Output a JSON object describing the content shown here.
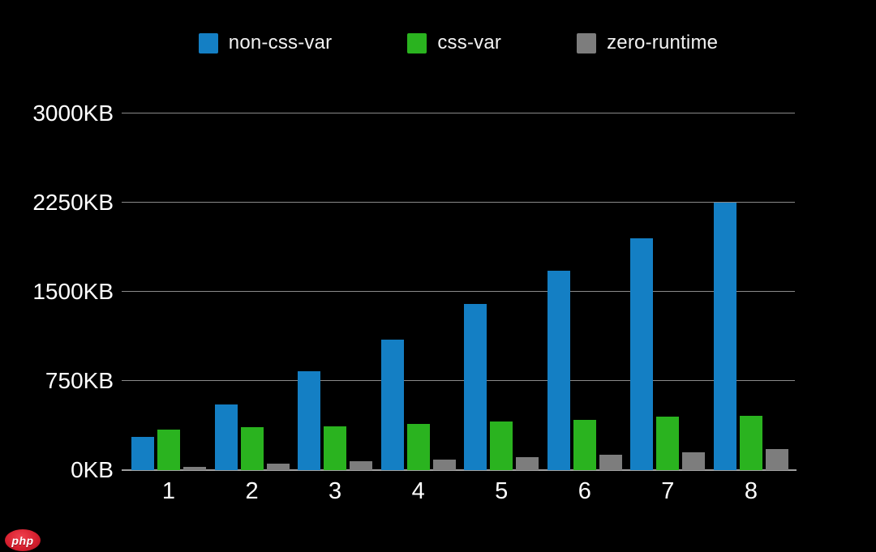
{
  "page": {
    "background": "#000000",
    "text_color": "#ffffff",
    "gridline_color": "#8a8a8a"
  },
  "legend": {
    "items": [
      {
        "label": "non-css-var",
        "color": "#147fc4"
      },
      {
        "label": "css-var",
        "color": "#2ab31f"
      },
      {
        "label": "zero-runtime",
        "color": "#7d7d7d"
      }
    ]
  },
  "chart_data": {
    "type": "bar",
    "title": "",
    "xlabel": "",
    "ylabel": "",
    "unit": "KB",
    "categories": [
      "1",
      "2",
      "3",
      "4",
      "5",
      "6",
      "7",
      "8"
    ],
    "series": [
      {
        "name": "non-css-var",
        "color": "#147fc4",
        "values": [
          280,
          550,
          830,
          1100,
          1400,
          1680,
          1950,
          2250
        ]
      },
      {
        "name": "css-var",
        "color": "#2ab31f",
        "values": [
          340,
          360,
          370,
          390,
          410,
          420,
          450,
          460
        ]
      },
      {
        "name": "zero-runtime",
        "color": "#7d7d7d",
        "values": [
          30,
          55,
          75,
          90,
          110,
          130,
          150,
          180
        ]
      }
    ],
    "ylim": [
      0,
      3000
    ],
    "yticks": [
      {
        "value": 3000,
        "label": "3000KB"
      },
      {
        "value": 2250,
        "label": "2250KB"
      },
      {
        "value": 1500,
        "label": "1500KB"
      },
      {
        "value": 750,
        "label": "750KB"
      },
      {
        "value": 0,
        "label": "0KB"
      }
    ],
    "grid": true,
    "legend_position": "top",
    "background": "#000000"
  },
  "watermark": {
    "text": "php"
  }
}
